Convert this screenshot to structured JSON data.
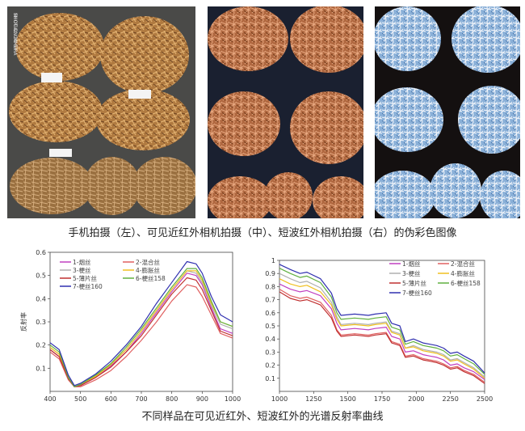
{
  "photos": {
    "left_label": "SHOT ON MI 5X\nMI DUAL CAMERA"
  },
  "captions": {
    "top": "手机拍摄（左）、可见近红外相机拍摄（中）、短波红外相机拍摄（右）的伪彩色图像",
    "bottom": "不同样品在可见近红外、短波红外的光谱反射率曲线"
  },
  "chart_data": [
    {
      "type": "line",
      "title": "",
      "xlabel": "",
      "ylabel": "反射率",
      "xlim": [
        400,
        1000
      ],
      "ylim": [
        0,
        0.6
      ],
      "xticks": [
        400,
        500,
        600,
        700,
        800,
        900,
        1000
      ],
      "yticks": [
        0.1,
        0.2,
        0.3,
        0.4,
        0.5,
        0.6
      ],
      "legend_position": "top-left",
      "x": [
        400,
        430,
        460,
        480,
        500,
        550,
        600,
        650,
        700,
        750,
        800,
        850,
        880,
        900,
        930,
        960,
        1000
      ],
      "series": [
        {
          "name": "1-烟丝",
          "color": "#c040c0",
          "values": [
            0.18,
            0.15,
            0.06,
            0.02,
            0.025,
            0.06,
            0.11,
            0.17,
            0.25,
            0.34,
            0.43,
            0.51,
            0.5,
            0.46,
            0.36,
            0.27,
            0.25
          ]
        },
        {
          "name": "2-混合丝",
          "color": "#e06060",
          "values": [
            0.17,
            0.14,
            0.05,
            0.02,
            0.02,
            0.05,
            0.09,
            0.15,
            0.22,
            0.3,
            0.39,
            0.46,
            0.45,
            0.41,
            0.33,
            0.25,
            0.23
          ]
        },
        {
          "name": "3-梗丝",
          "color": "#b0b0b0",
          "values": [
            0.19,
            0.16,
            0.06,
            0.02,
            0.03,
            0.065,
            0.12,
            0.18,
            0.26,
            0.35,
            0.44,
            0.52,
            0.51,
            0.47,
            0.37,
            0.29,
            0.27
          ]
        },
        {
          "name": "4-膨胀丝",
          "color": "#f0c020",
          "values": [
            0.19,
            0.16,
            0.06,
            0.02,
            0.03,
            0.065,
            0.115,
            0.18,
            0.26,
            0.35,
            0.44,
            0.52,
            0.52,
            0.48,
            0.38,
            0.3,
            0.28
          ]
        },
        {
          "name": "5-薄片丝",
          "color": "#c03030",
          "values": [
            0.18,
            0.15,
            0.055,
            0.02,
            0.025,
            0.06,
            0.105,
            0.17,
            0.24,
            0.33,
            0.42,
            0.49,
            0.48,
            0.44,
            0.35,
            0.26,
            0.24
          ]
        },
        {
          "name": "6-梗丝158",
          "color": "#60b040",
          "values": [
            0.2,
            0.17,
            0.06,
            0.02,
            0.03,
            0.07,
            0.12,
            0.19,
            0.27,
            0.36,
            0.45,
            0.53,
            0.53,
            0.49,
            0.39,
            0.3,
            0.28
          ]
        },
        {
          "name": "7-梗丝160",
          "color": "#3030b0",
          "values": [
            0.21,
            0.18,
            0.07,
            0.025,
            0.035,
            0.075,
            0.13,
            0.2,
            0.28,
            0.38,
            0.47,
            0.56,
            0.55,
            0.51,
            0.41,
            0.33,
            0.3
          ]
        }
      ]
    },
    {
      "type": "line",
      "title": "",
      "xlabel": "",
      "ylabel": "",
      "xlim": [
        1000,
        2500
      ],
      "ylim": [
        0,
        1.0
      ],
      "xticks": [
        1000,
        1250,
        1500,
        1750,
        2000,
        2250,
        2500
      ],
      "yticks": [
        0.1,
        0.2,
        0.3,
        0.4,
        0.5,
        0.6,
        0.7,
        0.8,
        0.9,
        1.0
      ],
      "legend_position": "top-right",
      "x": [
        1000,
        1080,
        1150,
        1200,
        1300,
        1380,
        1420,
        1450,
        1550,
        1650,
        1700,
        1780,
        1820,
        1880,
        1920,
        1980,
        2050,
        2100,
        2150,
        2200,
        2250,
        2300,
        2350,
        2420,
        2500
      ],
      "series": [
        {
          "name": "1-烟丝",
          "color": "#c040c0",
          "values": [
            0.82,
            0.78,
            0.76,
            0.77,
            0.73,
            0.63,
            0.52,
            0.47,
            0.48,
            0.47,
            0.48,
            0.49,
            0.42,
            0.4,
            0.3,
            0.31,
            0.28,
            0.27,
            0.26,
            0.24,
            0.2,
            0.21,
            0.18,
            0.15,
            0.09
          ]
        },
        {
          "name": "2-混合丝",
          "color": "#e06060",
          "values": [
            0.78,
            0.73,
            0.71,
            0.72,
            0.68,
            0.58,
            0.47,
            0.43,
            0.44,
            0.43,
            0.44,
            0.45,
            0.38,
            0.36,
            0.27,
            0.28,
            0.25,
            0.24,
            0.23,
            0.21,
            0.18,
            0.19,
            0.16,
            0.13,
            0.07
          ]
        },
        {
          "name": "3-梗丝",
          "color": "#b0b0b0",
          "values": [
            0.9,
            0.86,
            0.83,
            0.84,
            0.79,
            0.68,
            0.57,
            0.51,
            0.52,
            0.51,
            0.52,
            0.53,
            0.46,
            0.44,
            0.33,
            0.35,
            0.32,
            0.31,
            0.3,
            0.28,
            0.24,
            0.25,
            0.22,
            0.18,
            0.11
          ]
        },
        {
          "name": "4-膨胀丝",
          "color": "#f0c020",
          "values": [
            0.86,
            0.82,
            0.8,
            0.81,
            0.76,
            0.66,
            0.55,
            0.5,
            0.51,
            0.5,
            0.51,
            0.52,
            0.45,
            0.43,
            0.33,
            0.34,
            0.31,
            0.3,
            0.29,
            0.27,
            0.23,
            0.24,
            0.21,
            0.17,
            0.1
          ]
        },
        {
          "name": "5-薄片丝",
          "color": "#c03030",
          "values": [
            0.76,
            0.71,
            0.69,
            0.7,
            0.66,
            0.56,
            0.46,
            0.42,
            0.43,
            0.42,
            0.43,
            0.44,
            0.37,
            0.35,
            0.26,
            0.27,
            0.24,
            0.23,
            0.22,
            0.2,
            0.17,
            0.18,
            0.15,
            0.12,
            0.06
          ]
        },
        {
          "name": "6-梗丝158",
          "color": "#60b040",
          "values": [
            0.94,
            0.9,
            0.87,
            0.88,
            0.83,
            0.72,
            0.6,
            0.55,
            0.56,
            0.55,
            0.56,
            0.57,
            0.49,
            0.47,
            0.36,
            0.38,
            0.35,
            0.34,
            0.33,
            0.31,
            0.27,
            0.28,
            0.25,
            0.21,
            0.13
          ]
        },
        {
          "name": "7-梗丝160",
          "color": "#3030b0",
          "values": [
            0.97,
            0.93,
            0.9,
            0.91,
            0.86,
            0.75,
            0.63,
            0.58,
            0.59,
            0.58,
            0.59,
            0.6,
            0.52,
            0.5,
            0.38,
            0.4,
            0.37,
            0.36,
            0.35,
            0.33,
            0.29,
            0.3,
            0.27,
            0.23,
            0.14
          ]
        }
      ]
    }
  ]
}
